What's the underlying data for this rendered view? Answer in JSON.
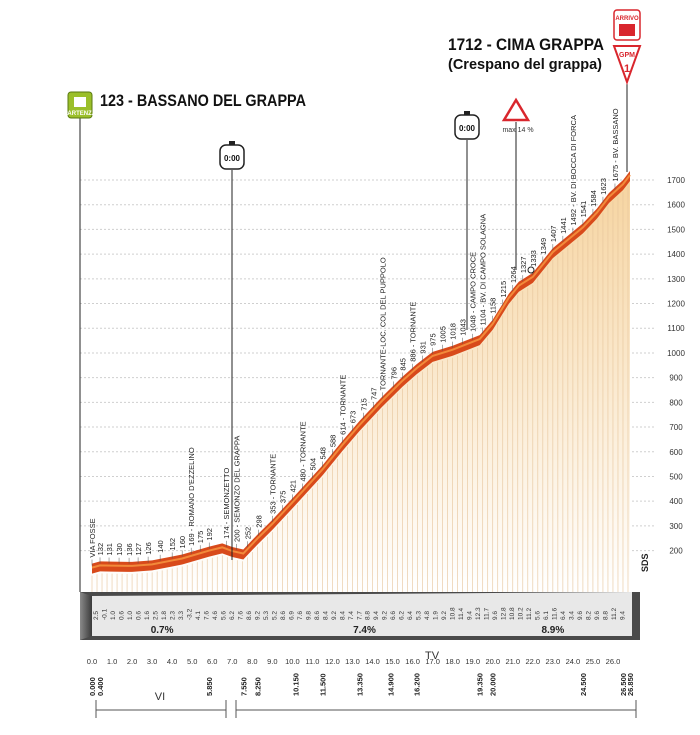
{
  "start_label": "123 - BASSANO DEL GRAPPA",
  "finish_label": "1712 - CIMA GRAPPA",
  "finish_sub": "(Crespano del grappa)",
  "partenza": "PARTENZA",
  "arrivo": "ARRIVO",
  "gpm": "GPM",
  "gpm_cat": "1",
  "timer_1": "0:00",
  "timer_2": "0:00",
  "warning_text": "max 14 %",
  "sds": "SDS",
  "road_vi": "VI",
  "road_tv": "TV",
  "colors": {
    "profile": "#d84a1b",
    "profile_light": "#f28a3a",
    "ground": "#555555",
    "green_sign": "#9bbf2a",
    "red_sign": "#d9262d"
  },
  "chart_data": {
    "type": "area",
    "title": "Elevation profile",
    "xlabel": "km",
    "ylabel": "m",
    "xlim": [
      0,
      26.85
    ],
    "ylim": [
      0,
      1700
    ],
    "y_ticks": [
      "200",
      "300",
      "400",
      "500",
      "600",
      "700",
      "800",
      "900",
      "1000",
      "1100",
      "1200",
      "1300",
      "1400",
      "1500",
      "1600",
      "1700"
    ],
    "x_ticks": [
      "0.0",
      "1.0",
      "2.0",
      "3.0",
      "4.0",
      "5.0",
      "6.0",
      "7.0",
      "8.0",
      "9.0",
      "10.0",
      "11.0",
      "12.0",
      "13.0",
      "14.0",
      "15.0",
      "16.0",
      "17.0",
      "18.0",
      "19.0",
      "20.0",
      "21.0",
      "22.0",
      "23.0",
      "24.0",
      "25.0",
      "26.0"
    ],
    "profile": [
      [
        0,
        123
      ],
      [
        0.4,
        132
      ],
      [
        1.0,
        131
      ],
      [
        2.0,
        130
      ],
      [
        3.0,
        136
      ],
      [
        4.0,
        152
      ],
      [
        4.5,
        160
      ],
      [
        5.85,
        192
      ],
      [
        6.5,
        205
      ],
      [
        7.0,
        190
      ],
      [
        7.55,
        180
      ],
      [
        8.25,
        240
      ],
      [
        9.0,
        300
      ],
      [
        10.15,
        400
      ],
      [
        11.5,
        520
      ],
      [
        12.5,
        620
      ],
      [
        13.35,
        700
      ],
      [
        14.5,
        800
      ],
      [
        15.5,
        880
      ],
      [
        16.2,
        930
      ],
      [
        17.0,
        980
      ],
      [
        18.0,
        1005
      ],
      [
        19.35,
        1048
      ],
      [
        20.0,
        1110
      ],
      [
        20.8,
        1215
      ],
      [
        21.3,
        1264
      ],
      [
        22.0,
        1300
      ],
      [
        23.0,
        1400
      ],
      [
        24.5,
        1500
      ],
      [
        25.2,
        1560
      ],
      [
        25.8,
        1623
      ],
      [
        26.5,
        1675
      ],
      [
        26.85,
        1712
      ]
    ],
    "point_labels": [
      {
        "km": 0.0,
        "text": "VIA FOSSE"
      },
      {
        "km": 0.4,
        "text": "132"
      },
      {
        "km": 0.85,
        "text": "131"
      },
      {
        "km": 1.35,
        "text": "130"
      },
      {
        "km": 1.85,
        "text": "136"
      },
      {
        "km": 2.3,
        "text": "127"
      },
      {
        "km": 2.8,
        "text": "126"
      },
      {
        "km": 3.4,
        "text": "140"
      },
      {
        "km": 4.0,
        "text": "152"
      },
      {
        "km": 4.5,
        "text": "160"
      },
      {
        "km": 4.95,
        "text": "169 - ROMANO D'EZZELINO"
      },
      {
        "km": 5.4,
        "text": "175"
      },
      {
        "km": 5.85,
        "text": "192"
      },
      {
        "km": 6.7,
        "text": "174 - SEMONZETTO"
      },
      {
        "km": 7.2,
        "text": "200 - SEMONZO DEL GRAPPA"
      },
      {
        "km": 7.75,
        "text": "252"
      },
      {
        "km": 8.3,
        "text": "298"
      },
      {
        "km": 9.0,
        "text": "353 - TORNANTE"
      },
      {
        "km": 9.5,
        "text": "375"
      },
      {
        "km": 10.0,
        "text": "421"
      },
      {
        "km": 10.5,
        "text": "480 - TORNANTE"
      },
      {
        "km": 11.0,
        "text": "504"
      },
      {
        "km": 11.5,
        "text": "548"
      },
      {
        "km": 12.0,
        "text": "588"
      },
      {
        "km": 12.5,
        "text": "614 - TORNANTE"
      },
      {
        "km": 13.0,
        "text": "673"
      },
      {
        "km": 13.55,
        "text": "715"
      },
      {
        "km": 14.05,
        "text": "747"
      },
      {
        "km": 14.5,
        "text": "TORNANTE-LOC. COL DEL PUPPOLO"
      },
      {
        "km": 15.05,
        "text": "796"
      },
      {
        "km": 15.5,
        "text": "845"
      },
      {
        "km": 16.0,
        "text": "886 - TORNANTE"
      },
      {
        "km": 16.5,
        "text": "931"
      },
      {
        "km": 17.0,
        "text": "975"
      },
      {
        "km": 17.5,
        "text": "1005"
      },
      {
        "km": 18.0,
        "text": "1018"
      },
      {
        "km": 18.5,
        "text": "1043"
      },
      {
        "km": 19.0,
        "text": "1048 - CAMPO CROCE"
      },
      {
        "km": 19.5,
        "text": "1104 - BV. DI CAMPO SOLAGNA"
      },
      {
        "km": 20.0,
        "text": "1158"
      },
      {
        "km": 20.5,
        "text": "1215"
      },
      {
        "km": 21.0,
        "text": "1264"
      },
      {
        "km": 21.5,
        "text": "1327"
      },
      {
        "km": 22.0,
        "text": "1333"
      },
      {
        "km": 22.5,
        "text": "1349"
      },
      {
        "km": 23.0,
        "text": "1407"
      },
      {
        "km": 23.5,
        "text": "1441"
      },
      {
        "km": 24.0,
        "text": "1492 - BV. DI BOCCA DI FORCA"
      },
      {
        "km": 24.5,
        "text": "1541"
      },
      {
        "km": 25.0,
        "text": "1584"
      },
      {
        "km": 25.5,
        "text": "1623"
      },
      {
        "km": 26.1,
        "text": "1675 - BV. BASSANO"
      }
    ],
    "gradients": [
      "2.5",
      "-0.1",
      "1.0",
      "0.6",
      "1.0",
      "0.6",
      "1.6",
      "2.5",
      "1.8",
      "2.3",
      "3.3",
      "-3.2",
      "4.1",
      "7.6",
      "4.6",
      "5.6",
      "6.2",
      "7.6",
      "8.6",
      "9.2",
      "5.3",
      "5.2",
      "8.6",
      "6.9",
      "7.6",
      "9.8",
      "8.6",
      "8.4",
      "9.2",
      "8.4",
      "7.4",
      "7.7",
      "8.8",
      "9.4",
      "9.2",
      "6.6",
      "6.2",
      "6.4",
      "5.3",
      "4.8",
      "1.9",
      "9.2",
      "10.8",
      "11.4",
      "9.4",
      "12.3",
      "11.7",
      "9.6",
      "12.8",
      "10.8",
      "10.2",
      "11.2",
      "5.6",
      "6.1",
      "11.6",
      "6.4",
      "3.4",
      "9.6",
      "8.2",
      "9.6",
      "8.8",
      "11.2",
      "9.4"
    ],
    "avg_gradients": [
      {
        "km": 3.5,
        "text": "0.7%"
      },
      {
        "km": 13.6,
        "text": "7.4%"
      },
      {
        "km": 23.0,
        "text": "8.9%"
      }
    ],
    "km_marks_bottom": [
      {
        "km": 0.0,
        "text": "0.000"
      },
      {
        "km": 0.4,
        "text": "0.400"
      },
      {
        "km": 5.85,
        "text": "5.850"
      },
      {
        "km": 7.55,
        "text": "7.550"
      },
      {
        "km": 8.25,
        "text": "8.250"
      },
      {
        "km": 10.15,
        "text": "10.150"
      },
      {
        "km": 11.5,
        "text": "11.500"
      },
      {
        "km": 13.35,
        "text": "13.350"
      },
      {
        "km": 14.9,
        "text": "14.900"
      },
      {
        "km": 16.2,
        "text": "16.200"
      },
      {
        "km": 19.35,
        "text": "19.350"
      },
      {
        "km": 20.0,
        "text": "20.000"
      },
      {
        "km": 24.5,
        "text": "24.500"
      },
      {
        "km": 26.5,
        "text": "26.500"
      },
      {
        "km": 26.85,
        "text": "26.850"
      }
    ]
  }
}
